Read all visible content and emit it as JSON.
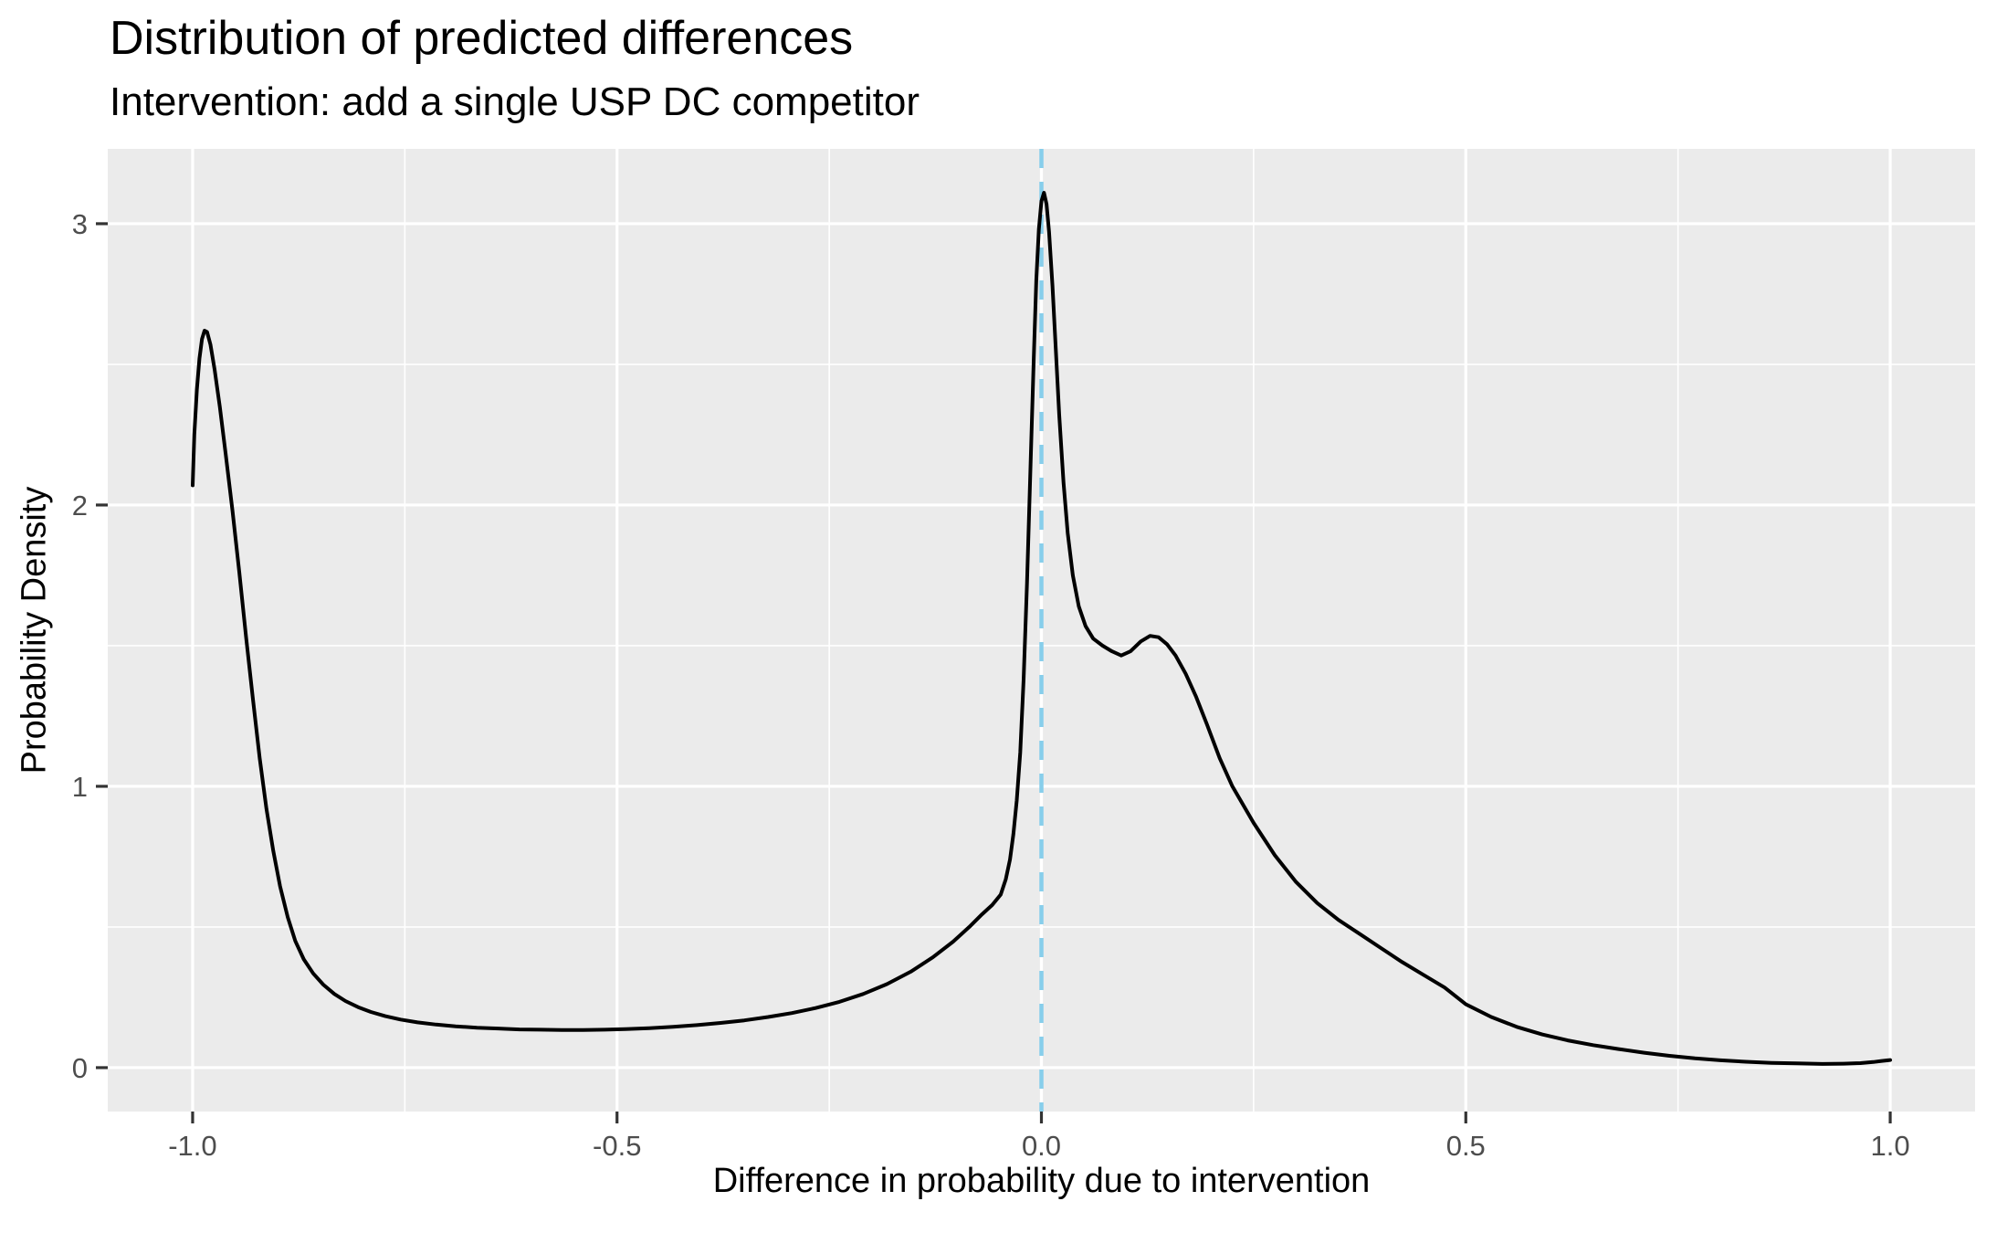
{
  "page": {
    "background": "#FFFFFF"
  },
  "chart_data": {
    "type": "line",
    "subtype": "density-curve",
    "title": "Distribution of predicted differences",
    "subtitle": "Intervention: add a single USP DC competitor",
    "xlabel": "Difference in probability due to intervention",
    "ylabel": "Probability Density",
    "xlim": [
      -1.1,
      1.1
    ],
    "ylim": [
      -0.156,
      3.266
    ],
    "grid": "on",
    "legend": "none",
    "panel_bg": "#EBEBEB",
    "grid_color": "#FFFFFF",
    "curve_color": "#000000",
    "tick_label_color": "#4D4D4D",
    "tick_mark_color": "#333333",
    "x_ticks": {
      "values": [
        -1.0,
        -0.5,
        0.0,
        0.5,
        1.0
      ],
      "labels": [
        "-1.0",
        "-0.5",
        "0.0",
        "0.5",
        "1.0"
      ]
    },
    "y_ticks": {
      "values": [
        0,
        1,
        2,
        3
      ],
      "labels": [
        "0",
        "1",
        "2",
        "3"
      ]
    },
    "x_minor": [
      -0.75,
      -0.25,
      0.25,
      0.75
    ],
    "y_minor": [
      0.5,
      1.5,
      2.5
    ],
    "reference_line": {
      "x": 0,
      "style": "dashed",
      "color": "#87CEEB"
    },
    "series": [
      {
        "name": "predicted-difference-density",
        "points": [
          [
            -1.0,
            2.07
          ],
          [
            -0.998,
            2.25
          ],
          [
            -0.995,
            2.41
          ],
          [
            -0.992,
            2.52
          ],
          [
            -0.989,
            2.59
          ],
          [
            -0.986,
            2.62
          ],
          [
            -0.983,
            2.615
          ],
          [
            -0.979,
            2.57
          ],
          [
            -0.974,
            2.48
          ],
          [
            -0.968,
            2.35
          ],
          [
            -0.961,
            2.18
          ],
          [
            -0.953,
            1.98
          ],
          [
            -0.945,
            1.76
          ],
          [
            -0.937,
            1.53
          ],
          [
            -0.929,
            1.31
          ],
          [
            -0.921,
            1.1
          ],
          [
            -0.913,
            0.92
          ],
          [
            -0.905,
            0.77
          ],
          [
            -0.897,
            0.645
          ],
          [
            -0.888,
            0.535
          ],
          [
            -0.879,
            0.45
          ],
          [
            -0.869,
            0.385
          ],
          [
            -0.858,
            0.335
          ],
          [
            -0.846,
            0.295
          ],
          [
            -0.833,
            0.262
          ],
          [
            -0.82,
            0.237
          ],
          [
            -0.805,
            0.215
          ],
          [
            -0.79,
            0.198
          ],
          [
            -0.773,
            0.183
          ],
          [
            -0.755,
            0.171
          ],
          [
            -0.735,
            0.161
          ],
          [
            -0.713,
            0.153
          ],
          [
            -0.69,
            0.147
          ],
          [
            -0.665,
            0.142
          ],
          [
            -0.64,
            0.139
          ],
          [
            -0.615,
            0.136
          ],
          [
            -0.59,
            0.135
          ],
          [
            -0.565,
            0.134
          ],
          [
            -0.54,
            0.134
          ],
          [
            -0.515,
            0.135
          ],
          [
            -0.49,
            0.137
          ],
          [
            -0.462,
            0.14
          ],
          [
            -0.434,
            0.145
          ],
          [
            -0.406,
            0.151
          ],
          [
            -0.378,
            0.159
          ],
          [
            -0.35,
            0.168
          ],
          [
            -0.322,
            0.18
          ],
          [
            -0.294,
            0.194
          ],
          [
            -0.266,
            0.212
          ],
          [
            -0.238,
            0.234
          ],
          [
            -0.21,
            0.262
          ],
          [
            -0.182,
            0.297
          ],
          [
            -0.154,
            0.341
          ],
          [
            -0.128,
            0.392
          ],
          [
            -0.104,
            0.448
          ],
          [
            -0.085,
            0.5
          ],
          [
            -0.07,
            0.545
          ],
          [
            -0.058,
            0.578
          ],
          [
            -0.048,
            0.615
          ],
          [
            -0.042,
            0.67
          ],
          [
            -0.037,
            0.74
          ],
          [
            -0.033,
            0.83
          ],
          [
            -0.029,
            0.95
          ],
          [
            -0.025,
            1.12
          ],
          [
            -0.021,
            1.38
          ],
          [
            -0.017,
            1.72
          ],
          [
            -0.013,
            2.12
          ],
          [
            -0.009,
            2.52
          ],
          [
            -0.006,
            2.8
          ],
          [
            -0.003,
            2.98
          ],
          [
            0.0,
            3.08
          ],
          [
            0.003,
            3.11
          ],
          [
            0.006,
            3.07
          ],
          [
            0.009,
            2.97
          ],
          [
            0.013,
            2.78
          ],
          [
            0.017,
            2.55
          ],
          [
            0.021,
            2.32
          ],
          [
            0.026,
            2.08
          ],
          [
            0.031,
            1.9
          ],
          [
            0.037,
            1.75
          ],
          [
            0.044,
            1.64
          ],
          [
            0.052,
            1.57
          ],
          [
            0.061,
            1.525
          ],
          [
            0.072,
            1.5
          ],
          [
            0.083,
            1.48
          ],
          [
            0.094,
            1.465
          ],
          [
            0.105,
            1.48
          ],
          [
            0.117,
            1.515
          ],
          [
            0.128,
            1.535
          ],
          [
            0.138,
            1.53
          ],
          [
            0.148,
            1.505
          ],
          [
            0.158,
            1.465
          ],
          [
            0.17,
            1.4
          ],
          [
            0.182,
            1.32
          ],
          [
            0.195,
            1.22
          ],
          [
            0.21,
            1.1
          ],
          [
            0.225,
            1.0
          ],
          [
            0.25,
            0.87
          ],
          [
            0.275,
            0.755
          ],
          [
            0.3,
            0.66
          ],
          [
            0.325,
            0.585
          ],
          [
            0.35,
            0.525
          ],
          [
            0.375,
            0.475
          ],
          [
            0.4,
            0.425
          ],
          [
            0.425,
            0.375
          ],
          [
            0.45,
            0.33
          ],
          [
            0.475,
            0.285
          ],
          [
            0.5,
            0.225
          ],
          [
            0.53,
            0.18
          ],
          [
            0.56,
            0.145
          ],
          [
            0.59,
            0.118
          ],
          [
            0.62,
            0.097
          ],
          [
            0.65,
            0.08
          ],
          [
            0.68,
            0.066
          ],
          [
            0.71,
            0.053
          ],
          [
            0.74,
            0.042
          ],
          [
            0.77,
            0.033
          ],
          [
            0.8,
            0.026
          ],
          [
            0.83,
            0.021
          ],
          [
            0.86,
            0.017
          ],
          [
            0.89,
            0.015
          ],
          [
            0.92,
            0.013
          ],
          [
            0.945,
            0.014
          ],
          [
            0.965,
            0.016
          ],
          [
            0.98,
            0.02
          ],
          [
            0.99,
            0.024
          ],
          [
            1.0,
            0.027
          ]
        ]
      }
    ]
  }
}
